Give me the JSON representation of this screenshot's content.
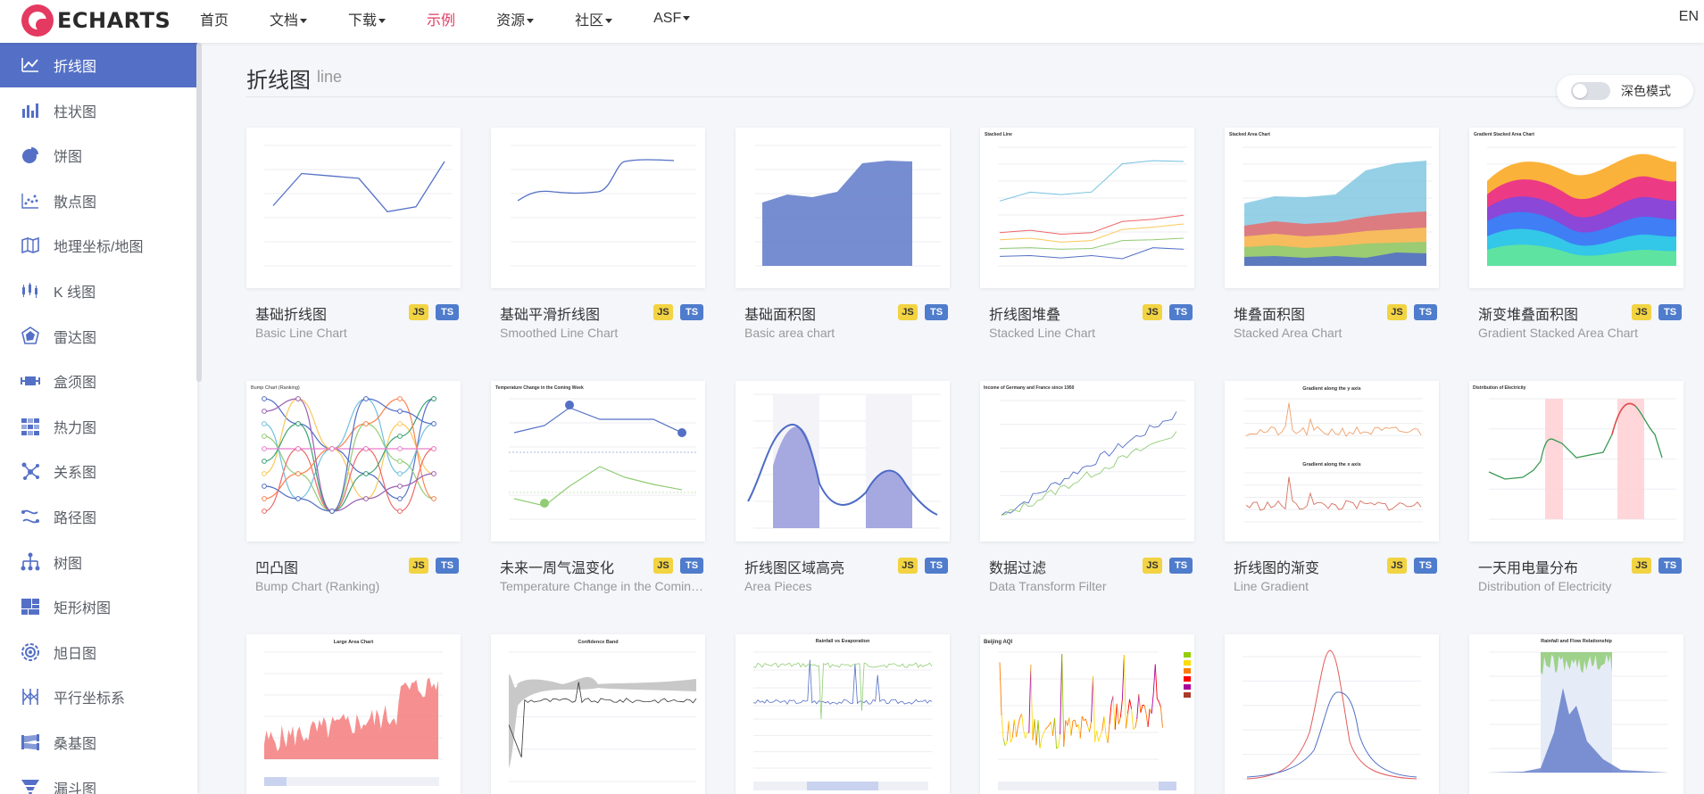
{
  "nav": {
    "logo_text": "ECHARTS",
    "items": [
      {
        "label": "首页",
        "dropdown": false,
        "active": false
      },
      {
        "label": "文档",
        "dropdown": true,
        "active": false
      },
      {
        "label": "下载",
        "dropdown": true,
        "active": false
      },
      {
        "label": "示例",
        "dropdown": false,
        "active": true
      },
      {
        "label": "资源",
        "dropdown": true,
        "active": false
      },
      {
        "label": "社区",
        "dropdown": true,
        "active": false
      },
      {
        "label": "ASF",
        "dropdown": true,
        "active": false
      }
    ],
    "lang": "EN",
    "accent_color": "#e43961"
  },
  "sidebar": {
    "active_color": "#5470c6",
    "items": [
      {
        "label": "折线图",
        "icon": "line-chart-icon",
        "active": true
      },
      {
        "label": "柱状图",
        "icon": "bar-chart-icon",
        "active": false
      },
      {
        "label": "饼图",
        "icon": "pie-chart-icon",
        "active": false
      },
      {
        "label": "散点图",
        "icon": "scatter-chart-icon",
        "active": false
      },
      {
        "label": "地理坐标/地图",
        "icon": "map-icon",
        "active": false
      },
      {
        "label": "K 线图",
        "icon": "candlestick-icon",
        "active": false
      },
      {
        "label": "雷达图",
        "icon": "radar-chart-icon",
        "active": false
      },
      {
        "label": "盒须图",
        "icon": "boxplot-icon",
        "active": false
      },
      {
        "label": "热力图",
        "icon": "heatmap-icon",
        "active": false
      },
      {
        "label": "关系图",
        "icon": "graph-icon",
        "active": false
      },
      {
        "label": "路径图",
        "icon": "lines-icon",
        "active": false
      },
      {
        "label": "树图",
        "icon": "tree-icon",
        "active": false
      },
      {
        "label": "矩形树图",
        "icon": "treemap-icon",
        "active": false
      },
      {
        "label": "旭日图",
        "icon": "sunburst-icon",
        "active": false
      },
      {
        "label": "平行坐标系",
        "icon": "parallel-icon",
        "active": false
      },
      {
        "label": "桑基图",
        "icon": "sankey-icon",
        "active": false
      },
      {
        "label": "漏斗图",
        "icon": "funnel-icon",
        "active": false
      }
    ]
  },
  "main": {
    "title": "折线图",
    "subtitle": "line",
    "dark_mode_label": "深色模式",
    "badges": {
      "js": "JS",
      "ts": "TS"
    },
    "cards": [
      {
        "title": "基础折线图",
        "subtitle": "Basic Line Chart",
        "thumb": "basic-line"
      },
      {
        "title": "基础平滑折线图",
        "subtitle": "Smoothed Line Chart",
        "thumb": "smooth-line"
      },
      {
        "title": "基础面积图",
        "subtitle": "Basic area chart",
        "thumb": "basic-area"
      },
      {
        "title": "折线图堆叠",
        "subtitle": "Stacked Line Chart",
        "thumb": "stacked-line"
      },
      {
        "title": "堆叠面积图",
        "subtitle": "Stacked Area Chart",
        "thumb": "stacked-area"
      },
      {
        "title": "渐变堆叠面积图",
        "subtitle": "Gradient Stacked Area Chart",
        "thumb": "gradient-stacked"
      },
      {
        "title": "凹凸图",
        "subtitle": "Bump Chart (Ranking)",
        "thumb": "bump"
      },
      {
        "title": "未来一周气温变化",
        "subtitle": "Temperature Change in the Coming Week",
        "thumb": "temperature"
      },
      {
        "title": "折线图区域高亮",
        "subtitle": "Area Pieces",
        "thumb": "area-pieces"
      },
      {
        "title": "数据过滤",
        "subtitle": "Data Transform Filter",
        "thumb": "data-filter"
      },
      {
        "title": "折线图的渐变",
        "subtitle": "Line Gradient",
        "thumb": "line-gradient"
      },
      {
        "title": "一天用电量分布",
        "subtitle": "Distribution of Electricity",
        "thumb": "electricity"
      },
      {
        "title": "",
        "subtitle": "",
        "thumb": "large-area"
      },
      {
        "title": "",
        "subtitle": "",
        "thumb": "confidence-band"
      },
      {
        "title": "",
        "subtitle": "",
        "thumb": "rainfall-evaporation"
      },
      {
        "title": "",
        "subtitle": "",
        "thumb": "beijing-aqi"
      },
      {
        "title": "",
        "subtitle": "",
        "thumb": "precipitation"
      },
      {
        "title": "",
        "subtitle": "",
        "thumb": "rainfall-flow"
      }
    ],
    "thumb_labels": {
      "stacked_line": "Stacked Line",
      "stacked_area": "Stacked Area Chart",
      "gradient_stacked": "Gradient Stacked Area Chart",
      "bump": "Bump Chart (Ranking)",
      "temperature": "Temperature Change in the Coming Week",
      "data_filter": "Income of Germany and France since 1950",
      "line_gradient_y": "Gradient along the y axis",
      "line_gradient_x": "Gradient along the x axis",
      "electricity": "Distribution of Electricity",
      "large_area": "Large Area Chart",
      "confidence": "Confidence Band",
      "rainfall_evaporation": "Rainfall vs Evaporation",
      "beijing_aqi": "Beijing AQI",
      "rainfall_flow": "Rainfall and Flow Relationship"
    }
  }
}
